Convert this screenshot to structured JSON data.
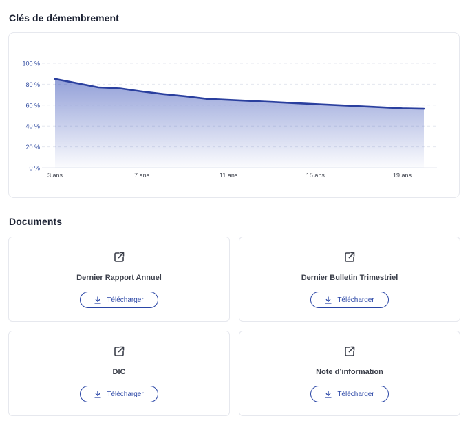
{
  "sections": {
    "keys_title": "Clés de démembrement",
    "documents_title": "Documents"
  },
  "chart_data": {
    "type": "area",
    "x": [
      3,
      4,
      5,
      6,
      7,
      8,
      9,
      10,
      11,
      12,
      13,
      14,
      15,
      16,
      17,
      18,
      19,
      20
    ],
    "series": [
      {
        "values": [
          85,
          81,
          77,
          76,
          73,
          70.5,
          68.5,
          66,
          65,
          64,
          63,
          62,
          61,
          60,
          59,
          58,
          57,
          56.5
        ]
      }
    ],
    "x_ticks": [
      3,
      7,
      11,
      15,
      19
    ],
    "x_tick_labels": [
      "3 ans",
      "7 ans",
      "11 ans",
      "15 ans",
      "19 ans"
    ],
    "y_ticks": [
      0,
      20,
      40,
      60,
      80,
      100
    ],
    "y_tick_labels": [
      "0 %",
      "20 %",
      "40 %",
      "60 %",
      "80 %",
      "100 %"
    ],
    "ylim": [
      0,
      100
    ],
    "xlim": [
      3,
      20
    ],
    "grid": true,
    "legend": "none",
    "colors": {
      "line": "#2a3f9e",
      "fill_top": "#3a52b8",
      "grid": "#e4e7ef",
      "tick": "#2f4aa0"
    }
  },
  "documents": [
    {
      "title": "Dernier Rapport Annuel",
      "button": "Télécharger",
      "icon": "external-link-icon"
    },
    {
      "title": "Dernier Bulletin Trimestriel",
      "button": "Télécharger",
      "icon": "external-link-icon"
    },
    {
      "title": "DIC",
      "button": "Télécharger",
      "icon": "external-link-icon"
    },
    {
      "title": "Note d’information",
      "button": "Télécharger",
      "icon": "external-link-icon"
    }
  ],
  "colors": {
    "accent": "#2a46a6",
    "card_border": "#e6e8ee"
  }
}
